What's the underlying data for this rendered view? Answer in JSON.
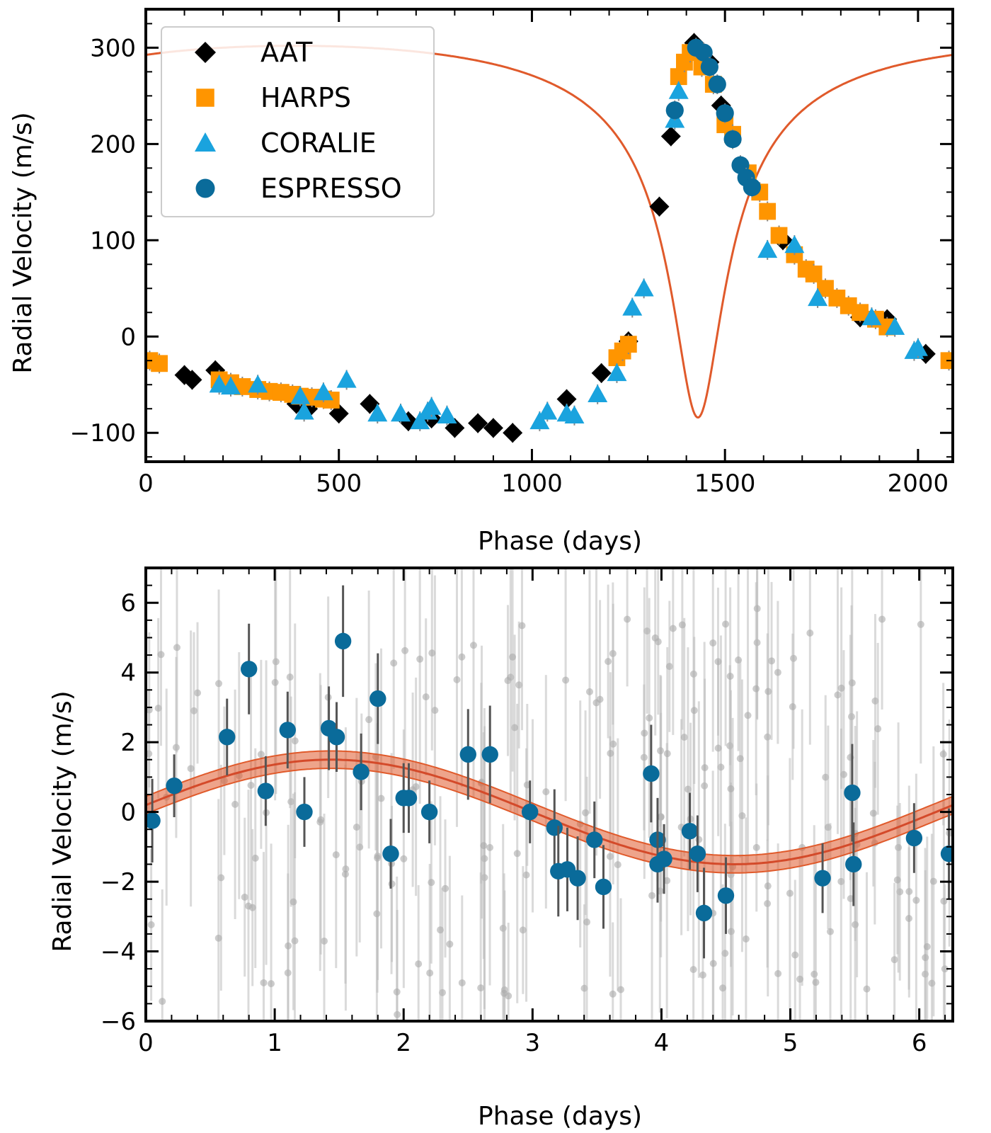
{
  "chart_data": [
    {
      "type": "scatter",
      "panel": "top",
      "title": "",
      "xlabel": "Phase (days)",
      "ylabel": "Radial Velocity (m/s)",
      "xlim": [
        0,
        2090
      ],
      "ylim": [
        -130,
        340
      ],
      "xticks": [
        0,
        500,
        1000,
        1500,
        2000
      ],
      "yticks": [
        -100,
        0,
        100,
        200,
        300
      ],
      "xtick_labels": [
        "0",
        "500",
        "1000",
        "1500",
        "2000"
      ],
      "ytick_labels": [
        "−100",
        "0",
        "100",
        "200",
        "300"
      ],
      "legend_position": "top-left",
      "model_color": "#e05a2b",
      "model": {
        "period": 2090,
        "K": 192,
        "e": 0.69,
        "w_deg": 180,
        "tp": 1430,
        "offset": -18
      },
      "series": [
        {
          "name": "AAT",
          "marker": "diamond",
          "color": "#000000",
          "x": [
            100,
            120,
            180,
            390,
            420,
            500,
            580,
            680,
            740,
            800,
            860,
            900,
            950,
            1090,
            1180,
            1250,
            1330,
            1360,
            1420,
            1460,
            1490,
            1650,
            1850,
            1920,
            2020
          ],
          "y": [
            -40,
            -45,
            -35,
            -70,
            -75,
            -80,
            -70,
            -88,
            -85,
            -95,
            -90,
            -95,
            -100,
            -65,
            -38,
            -5,
            135,
            208,
            305,
            285,
            240,
            100,
            20,
            18,
            -18
          ]
        },
        {
          "name": "HARPS",
          "marker": "square",
          "color": "#ff9500",
          "x": [
            10,
            35,
            190,
            220,
            250,
            290,
            320,
            350,
            380,
            400,
            430,
            460,
            480,
            1220,
            1235,
            1250,
            1380,
            1395,
            1410,
            1440,
            1470,
            1500,
            1520,
            1560,
            1590,
            1610,
            1640,
            1680,
            1710,
            1730,
            1760,
            1790,
            1820,
            1850,
            1890,
            1920,
            2080
          ],
          "y": [
            -25,
            -28,
            -45,
            -48,
            -52,
            -55,
            -57,
            -58,
            -60,
            -62,
            -63,
            -65,
            -66,
            -22,
            -15,
            -8,
            270,
            285,
            295,
            280,
            262,
            220,
            210,
            170,
            150,
            130,
            105,
            85,
            70,
            65,
            50,
            40,
            32,
            25,
            18,
            10,
            -25
          ]
        },
        {
          "name": "CORALIE",
          "marker": "triangle",
          "color": "#1aa3de",
          "x": [
            190,
            220,
            290,
            400,
            410,
            460,
            520,
            600,
            660,
            710,
            730,
            740,
            780,
            1020,
            1040,
            1090,
            1110,
            1170,
            1220,
            1260,
            1290,
            1370,
            1380,
            1610,
            1680,
            1740,
            1880,
            1940,
            1990,
            2000
          ],
          "y": [
            -50,
            -52,
            -50,
            -62,
            -78,
            -58,
            -45,
            -80,
            -80,
            -88,
            -78,
            -73,
            -82,
            -88,
            -78,
            -80,
            -82,
            -60,
            -38,
            30,
            50,
            225,
            255,
            90,
            95,
            40,
            20,
            10,
            -15,
            -12
          ]
        },
        {
          "name": "ESPRESSO",
          "marker": "circle",
          "color": "#0a6b9a",
          "x": [
            1370,
            1425,
            1445,
            1460,
            1480,
            1500,
            1520,
            1540,
            1555,
            1570
          ],
          "y": [
            235,
            300,
            295,
            280,
            262,
            232,
            205,
            178,
            165,
            155
          ]
        }
      ]
    },
    {
      "type": "scatter",
      "panel": "bottom",
      "title": "",
      "xlabel": "Phase (days)",
      "ylabel": "Radial Velocity (m/s)",
      "xlim": [
        0,
        6.26
      ],
      "ylim": [
        -6,
        7
      ],
      "xticks": [
        0,
        1,
        2,
        3,
        4,
        5,
        6
      ],
      "yticks": [
        -6,
        -4,
        -2,
        0,
        2,
        4,
        6
      ],
      "xtick_labels": [
        "0",
        "1",
        "2",
        "3",
        "4",
        "5",
        "6"
      ],
      "ytick_labels": [
        "−6",
        "−4",
        "−2",
        "0",
        "2",
        "4",
        "6"
      ],
      "model_color": "#e05a2b",
      "model": {
        "period": 6.26,
        "K": 1.5,
        "phase0": 3.0,
        "band": 0.25
      },
      "series": [
        {
          "name": "ESPRESSO",
          "marker": "circle",
          "color": "#0a6b9a",
          "x": [
            0.05,
            0.22,
            0.63,
            0.8,
            0.93,
            1.1,
            1.23,
            1.42,
            1.48,
            1.53,
            1.67,
            1.8,
            1.9,
            2.0,
            2.04,
            2.2,
            2.5,
            2.67,
            2.98,
            3.17,
            3.2,
            3.27,
            3.35,
            3.48,
            3.55,
            3.92,
            3.97,
            3.97,
            4.02,
            4.22,
            4.28,
            4.33,
            4.5,
            5.25,
            5.48,
            5.49,
            5.96,
            6.23
          ],
          "y": [
            -0.25,
            0.75,
            2.15,
            4.1,
            0.6,
            2.35,
            0.0,
            2.4,
            2.15,
            4.9,
            1.15,
            3.25,
            -1.2,
            0.4,
            0.4,
            0.0,
            1.65,
            1.65,
            0.0,
            -0.45,
            -1.7,
            -1.65,
            -1.9,
            -0.8,
            -2.15,
            1.1,
            -0.8,
            -1.5,
            -1.35,
            -0.55,
            -1.2,
            -2.9,
            -2.4,
            -1.9,
            0.55,
            -1.5,
            -0.75,
            -1.2
          ],
          "err": [
            1.2,
            0.9,
            1.1,
            1.3,
            1.0,
            1.1,
            1.0,
            1.2,
            1.0,
            1.6,
            1.1,
            1.3,
            1.0,
            1.0,
            1.0,
            0.9,
            1.3,
            1.4,
            0.9,
            1.1,
            1.3,
            1.2,
            1.2,
            1.1,
            1.2,
            1.4,
            1.2,
            1.1,
            1.0,
            1.1,
            1.1,
            1.3,
            1.1,
            1.0,
            1.4,
            1.2,
            1.0,
            1.3
          ]
        }
      ]
    }
  ]
}
